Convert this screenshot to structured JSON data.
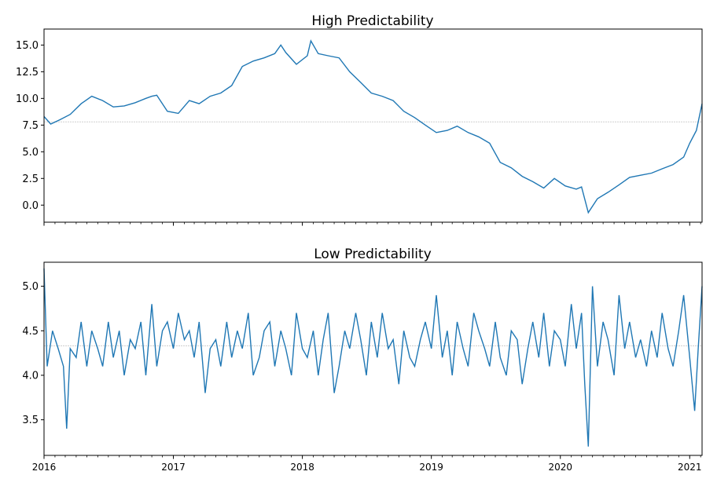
{
  "chart_data": [
    {
      "type": "line",
      "title": "High Predictability",
      "xlabel": "",
      "ylabel": "",
      "xlim": [
        "2016-01-01",
        "2021-02-05"
      ],
      "ylim": [
        -1.6,
        16.5
      ],
      "yticks": [
        0.0,
        2.5,
        5.0,
        7.5,
        10.0,
        12.5,
        15.0
      ],
      "ytick_labels": [
        "0.0",
        "2.5",
        "5.0",
        "7.5",
        "10.0",
        "12.5",
        "15.0"
      ],
      "reference_line": 7.8,
      "grid": false,
      "color": "#1f77b4",
      "series": [
        {
          "x": [
            "2016-01-01",
            "2016-01-20",
            "2016-02-15",
            "2016-03-15",
            "2016-04-15",
            "2016-05-15",
            "2016-06-15",
            "2016-07-15",
            "2016-08-15",
            "2016-09-15",
            "2016-10-15",
            "2016-11-01",
            "2016-11-15",
            "2016-12-15",
            "2017-01-15",
            "2017-02-15",
            "2017-03-15",
            "2017-04-15",
            "2017-05-15",
            "2017-06-15",
            "2017-07-15",
            "2017-08-15",
            "2017-09-15",
            "2017-10-15",
            "2017-11-01",
            "2017-11-15",
            "2017-12-15",
            "2018-01-15",
            "2018-01-25",
            "2018-02-15",
            "2018-03-15",
            "2018-04-15",
            "2018-05-15",
            "2018-06-15",
            "2018-07-15",
            "2018-08-15",
            "2018-09-15",
            "2018-10-15",
            "2018-11-15",
            "2018-12-15",
            "2019-01-15",
            "2019-02-15",
            "2019-03-15",
            "2019-04-15",
            "2019-05-15",
            "2019-06-15",
            "2019-07-15",
            "2019-08-15",
            "2019-09-15",
            "2019-10-15",
            "2019-11-15",
            "2019-12-15",
            "2020-01-15",
            "2020-02-15",
            "2020-03-01",
            "2020-03-20",
            "2020-04-15",
            "2020-05-15",
            "2020-06-15",
            "2020-07-15",
            "2020-08-15",
            "2020-09-15",
            "2020-10-15",
            "2020-11-15",
            "2020-12-15",
            "2021-01-01",
            "2021-01-20",
            "2021-02-05"
          ],
          "y": [
            8.3,
            7.6,
            8.0,
            8.5,
            9.5,
            10.2,
            9.8,
            9.2,
            9.3,
            9.6,
            10.0,
            10.2,
            10.3,
            8.8,
            8.6,
            9.8,
            9.5,
            10.2,
            10.5,
            11.2,
            13.0,
            13.5,
            13.8,
            14.2,
            15.0,
            14.3,
            13.2,
            14.0,
            15.4,
            14.2,
            14.0,
            13.8,
            12.5,
            11.5,
            10.5,
            10.2,
            9.8,
            8.8,
            8.2,
            7.5,
            6.8,
            7.0,
            7.4,
            6.8,
            6.4,
            5.8,
            4.0,
            3.5,
            2.7,
            2.2,
            1.6,
            2.5,
            1.8,
            1.5,
            1.7,
            -0.7,
            0.6,
            1.2,
            1.9,
            2.6,
            2.8,
            3.0,
            3.4,
            3.8,
            4.5,
            5.8,
            7.0,
            9.5
          ]
        }
      ]
    },
    {
      "type": "line",
      "title": "Low Predictability",
      "xlabel": "",
      "ylabel": "",
      "xlim": [
        "2016-01-01",
        "2021-02-05"
      ],
      "ylim": [
        3.1,
        5.27
      ],
      "yticks": [
        3.5,
        4.0,
        4.5,
        5.0
      ],
      "ytick_labels": [
        "3.5",
        "4.0",
        "4.5",
        "5.0"
      ],
      "reference_line": 4.33,
      "grid": false,
      "color": "#1f77b4",
      "series": [
        {
          "x": [
            "2016-01-01",
            "2016-01-10",
            "2016-01-25",
            "2016-02-10",
            "2016-02-25",
            "2016-03-05",
            "2016-03-15",
            "2016-04-01",
            "2016-04-15",
            "2016-05-01",
            "2016-05-15",
            "2016-06-01",
            "2016-06-15",
            "2016-07-01",
            "2016-07-15",
            "2016-08-01",
            "2016-08-15",
            "2016-09-01",
            "2016-09-15",
            "2016-10-01",
            "2016-10-15",
            "2016-11-01",
            "2016-11-15",
            "2016-12-01",
            "2016-12-15",
            "2017-01-01",
            "2017-01-15",
            "2017-02-01",
            "2017-02-15",
            "2017-03-01",
            "2017-03-15",
            "2017-04-01",
            "2017-04-15",
            "2017-05-01",
            "2017-05-15",
            "2017-06-01",
            "2017-06-15",
            "2017-07-01",
            "2017-07-15",
            "2017-08-01",
            "2017-08-15",
            "2017-09-01",
            "2017-09-15",
            "2017-10-01",
            "2017-10-15",
            "2017-11-01",
            "2017-11-15",
            "2017-12-01",
            "2017-12-15",
            "2018-01-01",
            "2018-01-15",
            "2018-02-01",
            "2018-02-15",
            "2018-03-01",
            "2018-03-15",
            "2018-04-01",
            "2018-04-15",
            "2018-05-01",
            "2018-05-15",
            "2018-06-01",
            "2018-06-15",
            "2018-07-01",
            "2018-07-15",
            "2018-08-01",
            "2018-08-15",
            "2018-09-01",
            "2018-09-15",
            "2018-10-01",
            "2018-10-15",
            "2018-11-01",
            "2018-11-15",
            "2018-12-01",
            "2018-12-15",
            "2019-01-01",
            "2019-01-15",
            "2019-02-01",
            "2019-02-15",
            "2019-03-01",
            "2019-03-15",
            "2019-04-01",
            "2019-04-15",
            "2019-05-01",
            "2019-05-15",
            "2019-06-01",
            "2019-06-15",
            "2019-07-01",
            "2019-07-15",
            "2019-08-01",
            "2019-08-15",
            "2019-09-01",
            "2019-09-15",
            "2019-10-01",
            "2019-10-15",
            "2019-11-01",
            "2019-11-15",
            "2019-12-01",
            "2019-12-15",
            "2020-01-01",
            "2020-01-15",
            "2020-02-01",
            "2020-02-15",
            "2020-03-01",
            "2020-03-10",
            "2020-03-20",
            "2020-04-01",
            "2020-04-15",
            "2020-05-01",
            "2020-05-15",
            "2020-06-01",
            "2020-06-15",
            "2020-07-01",
            "2020-07-15",
            "2020-08-01",
            "2020-08-15",
            "2020-09-01",
            "2020-09-15",
            "2020-10-01",
            "2020-10-15",
            "2020-11-01",
            "2020-11-15",
            "2020-12-01",
            "2020-12-15",
            "2021-01-01",
            "2021-01-15",
            "2021-01-25",
            "2021-02-05"
          ],
          "y": [
            5.2,
            4.1,
            4.5,
            4.3,
            4.1,
            3.4,
            4.3,
            4.2,
            4.6,
            4.1,
            4.5,
            4.3,
            4.1,
            4.6,
            4.2,
            4.5,
            4.0,
            4.4,
            4.3,
            4.6,
            4.0,
            4.8,
            4.1,
            4.5,
            4.6,
            4.3,
            4.7,
            4.4,
            4.5,
            4.2,
            4.6,
            3.8,
            4.3,
            4.4,
            4.1,
            4.6,
            4.2,
            4.5,
            4.3,
            4.7,
            4.0,
            4.2,
            4.5,
            4.6,
            4.1,
            4.5,
            4.3,
            4.0,
            4.7,
            4.3,
            4.2,
            4.5,
            4.0,
            4.4,
            4.7,
            3.8,
            4.1,
            4.5,
            4.3,
            4.7,
            4.4,
            4.0,
            4.6,
            4.2,
            4.7,
            4.3,
            4.4,
            3.9,
            4.5,
            4.2,
            4.1,
            4.4,
            4.6,
            4.3,
            4.9,
            4.2,
            4.5,
            4.0,
            4.6,
            4.3,
            4.1,
            4.7,
            4.5,
            4.3,
            4.1,
            4.6,
            4.2,
            4.0,
            4.5,
            4.4,
            3.9,
            4.3,
            4.6,
            4.2,
            4.7,
            4.1,
            4.5,
            4.4,
            4.1,
            4.8,
            4.3,
            4.7,
            3.9,
            3.2,
            5.0,
            4.1,
            4.6,
            4.4,
            4.0,
            4.9,
            4.3,
            4.6,
            4.2,
            4.4,
            4.1,
            4.5,
            4.2,
            4.7,
            4.3,
            4.1,
            4.5,
            4.9,
            4.2,
            3.6,
            4.3,
            5.0
          ]
        }
      ]
    }
  ],
  "x_axis": {
    "tick_labels": [
      "2016",
      "2017",
      "2018",
      "2019",
      "2020",
      "2021"
    ],
    "ticks": [
      "2016-01-01",
      "2017-01-01",
      "2018-01-01",
      "2019-01-01",
      "2020-01-01",
      "2021-01-01"
    ]
  }
}
